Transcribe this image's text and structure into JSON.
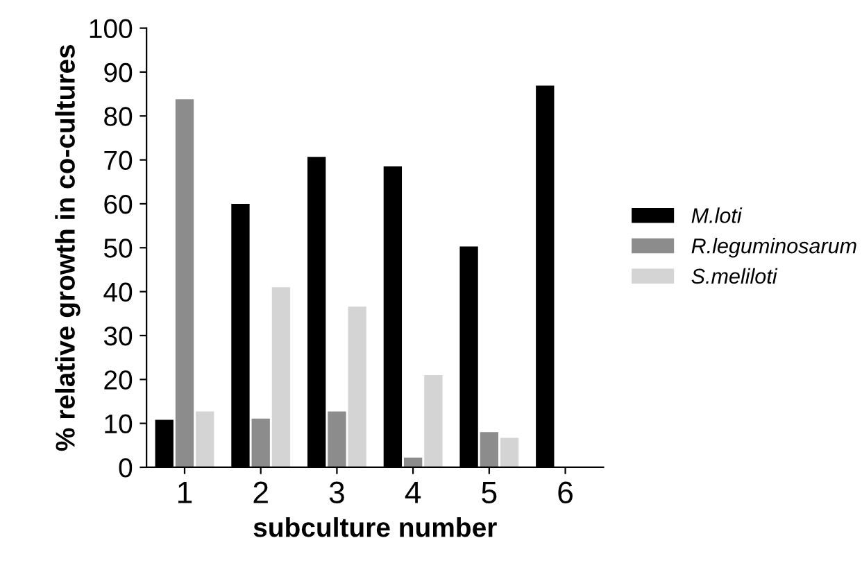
{
  "chart_data": {
    "type": "bar",
    "xlabel": "subculture number",
    "ylabel": "% relative growth in co-cultures",
    "categories": [
      "1",
      "2",
      "3",
      "4",
      "5",
      "6"
    ],
    "series": [
      {
        "name": "M.loti",
        "color": "#000000",
        "values": [
          10.8,
          60,
          70.7,
          68.5,
          50.3,
          86.9
        ]
      },
      {
        "name": "R.leguminosarum",
        "color": "#8c8c8c",
        "values": [
          83.8,
          11.1,
          12.7,
          2.2,
          8,
          null
        ]
      },
      {
        "name": "S.meliloti",
        "color": "#d4d4d4",
        "values": [
          12.7,
          41,
          36.6,
          21,
          6.7,
          null
        ]
      }
    ],
    "ylim": [
      0,
      100
    ],
    "yticks": [
      0,
      10,
      20,
      30,
      40,
      50,
      60,
      70,
      80,
      90,
      100
    ],
    "grid": false,
    "legend": "right"
  }
}
